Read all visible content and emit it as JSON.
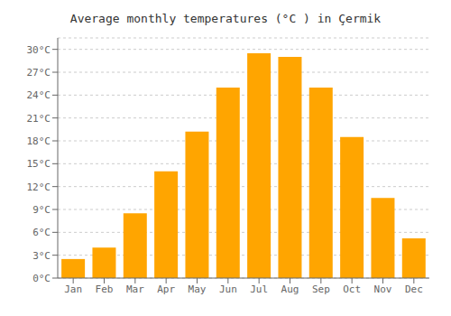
{
  "chart_data": {
    "type": "bar",
    "title": "Average monthly temperatures (°C ) in Çermik",
    "categories": [
      "Jan",
      "Feb",
      "Mar",
      "Apr",
      "May",
      "Jun",
      "Jul",
      "Aug",
      "Sep",
      "Oct",
      "Nov",
      "Dec"
    ],
    "values": [
      2.5,
      4.0,
      8.5,
      14.0,
      19.2,
      25.0,
      29.5,
      29.0,
      25.0,
      18.5,
      10.5,
      5.2
    ],
    "color": "#FFA500",
    "ylim": [
      0,
      31.5
    ],
    "yticks": [
      {
        "value": 0,
        "label": "0°C"
      },
      {
        "value": 3,
        "label": "3°C"
      },
      {
        "value": 6,
        "label": "6°C"
      },
      {
        "value": 9,
        "label": "9°C"
      },
      {
        "value": 12,
        "label": "12°C"
      },
      {
        "value": 15,
        "label": "15°C"
      },
      {
        "value": 18,
        "label": "18°C"
      },
      {
        "value": 21,
        "label": "21°C"
      },
      {
        "value": 24,
        "label": "24°C"
      },
      {
        "value": 27,
        "label": "27°C"
      },
      {
        "value": 30,
        "label": "30°C"
      }
    ],
    "grid": true
  }
}
